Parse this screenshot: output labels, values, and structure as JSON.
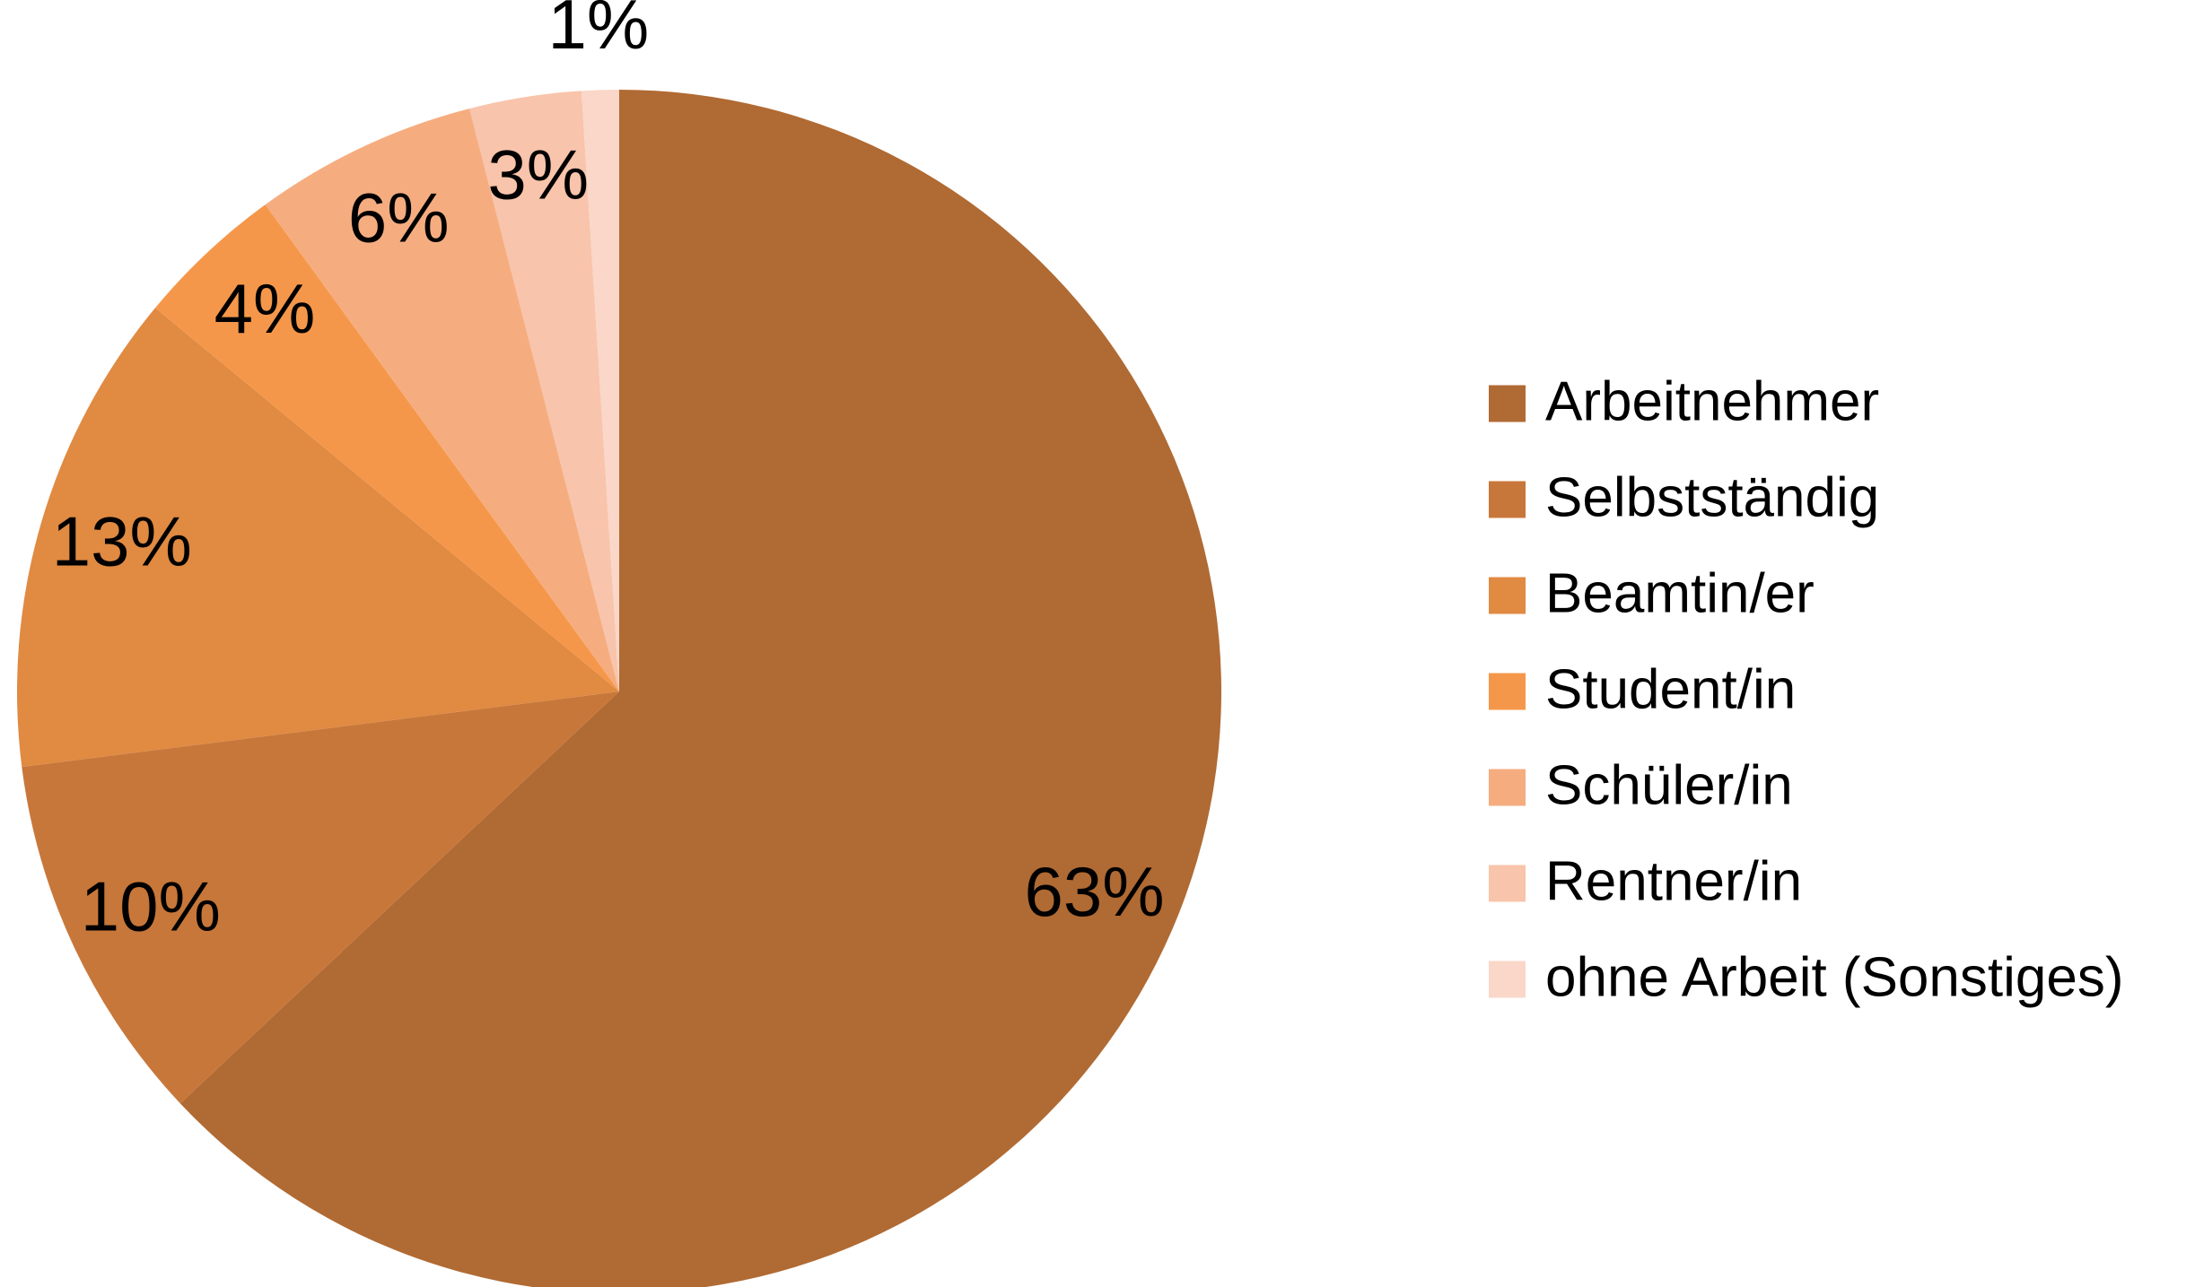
{
  "chart_data": {
    "type": "pie",
    "categories": [
      "Arbeitnehmer",
      "Selbstständig",
      "Beamtin/er",
      "Student/in",
      "Schüler/in",
      "Rentner/in",
      "ohne Arbeit (Sonstiges)"
    ],
    "values": [
      63,
      10,
      13,
      4,
      6,
      3,
      1
    ],
    "value_labels": [
      "63%",
      "10%",
      "13%",
      "4%",
      "6%",
      "3%",
      "1%"
    ],
    "colors": [
      "#b06a33",
      "#c8773a",
      "#e08a42",
      "#f5974a",
      "#f5ad80",
      "#f8c4ab",
      "#fad7c8"
    ],
    "legend": "right"
  }
}
